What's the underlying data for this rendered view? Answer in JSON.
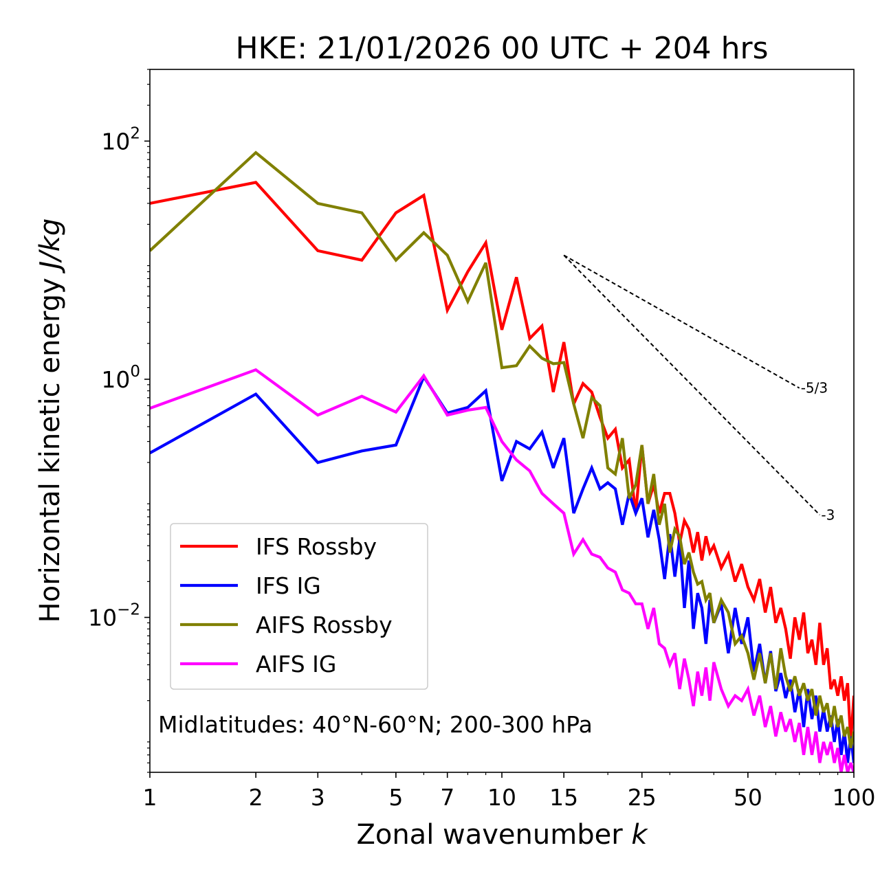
{
  "chart_data": {
    "type": "line",
    "title": "HKE: 21/01/2026 00 UTC + 204 hrs",
    "xlabel": "Zonal wavenumber",
    "xlabel_var": "k",
    "ylabel": "Horizontal kinetic energy",
    "ylabel_unit": "J/kg",
    "xscale": "log",
    "yscale": "log",
    "xlim": [
      1,
      100
    ],
    "ylim": [
      0.0005,
      400
    ],
    "xticks": [
      {
        "value": 1,
        "label": "1"
      },
      {
        "value": 2,
        "label": "2"
      },
      {
        "value": 3,
        "label": "3"
      },
      {
        "value": 5,
        "label": "5"
      },
      {
        "value": 7,
        "label": "7"
      },
      {
        "value": 10,
        "label": "10"
      },
      {
        "value": 15,
        "label": "15"
      },
      {
        "value": 25,
        "label": "25"
      },
      {
        "value": 50,
        "label": "50"
      },
      {
        "value": 100,
        "label": "100"
      }
    ],
    "yticks": [
      {
        "value": 100,
        "base": "10",
        "exp": "2"
      },
      {
        "value": 1,
        "base": "10",
        "exp": "0"
      },
      {
        "value": 0.01,
        "base": "10",
        "exp": "−2"
      }
    ],
    "annotation": "Midlatitudes: 40°N-60°N; 200-300 hPa",
    "legend_position": "lower-left",
    "reference_lines": [
      {
        "label": "-5/3",
        "slope": -1.6667,
        "x0": 15,
        "y0": 11,
        "x1": 70
      },
      {
        "label": "-3",
        "slope": -3,
        "x0": 15,
        "y0": 11,
        "x1": 80
      }
    ],
    "series": [
      {
        "name": "IFS Rossby",
        "color": "#ff0000",
        "x": [
          1,
          2,
          3,
          4,
          5,
          6,
          7,
          8,
          9,
          10,
          11,
          12,
          13,
          14,
          15,
          16,
          17,
          18,
          19,
          20,
          21,
          22,
          23,
          24,
          25,
          26,
          27,
          28,
          29,
          30,
          31,
          32,
          33,
          34,
          35,
          36,
          37,
          38,
          39,
          40,
          42,
          44,
          46,
          48,
          50,
          52,
          54,
          56,
          58,
          60,
          62,
          64,
          66,
          68,
          70,
          72,
          74,
          76,
          78,
          80,
          82,
          84,
          86,
          88,
          90,
          92,
          94,
          96,
          98,
          100
        ],
        "y": [
          30,
          45,
          12,
          10,
          25,
          35,
          3.8,
          8,
          14,
          2.6,
          7.2,
          2.2,
          2.8,
          0.78,
          2.05,
          0.62,
          0.92,
          0.78,
          0.48,
          0.32,
          0.38,
          0.18,
          0.21,
          0.075,
          0.28,
          0.09,
          0.13,
          0.075,
          0.11,
          0.11,
          0.075,
          0.042,
          0.065,
          0.055,
          0.035,
          0.052,
          0.03,
          0.048,
          0.035,
          0.04,
          0.026,
          0.034,
          0.02,
          0.028,
          0.018,
          0.014,
          0.021,
          0.011,
          0.018,
          0.009,
          0.012,
          0.008,
          0.0045,
          0.01,
          0.0065,
          0.011,
          0.005,
          0.0065,
          0.004,
          0.009,
          0.004,
          0.0055,
          0.0025,
          0.003,
          0.0022,
          0.0032,
          0.002,
          0.0028,
          0.0009,
          0.0022
        ]
      },
      {
        "name": "IFS IG",
        "color": "#0000ff",
        "x": [
          1,
          2,
          3,
          4,
          5,
          6,
          7,
          8,
          9,
          10,
          11,
          12,
          13,
          14,
          15,
          16,
          17,
          18,
          19,
          20,
          21,
          22,
          23,
          24,
          25,
          26,
          27,
          28,
          29,
          30,
          31,
          32,
          33,
          34,
          35,
          36,
          37,
          38,
          39,
          40,
          42,
          44,
          46,
          48,
          50,
          52,
          54,
          56,
          58,
          60,
          62,
          64,
          66,
          68,
          70,
          72,
          74,
          76,
          78,
          80,
          82,
          84,
          86,
          88,
          90,
          92,
          94,
          96,
          98,
          100
        ],
        "y": [
          0.24,
          0.75,
          0.2,
          0.25,
          0.28,
          1.05,
          0.52,
          0.58,
          0.8,
          0.14,
          0.3,
          0.26,
          0.36,
          0.18,
          0.32,
          0.075,
          0.12,
          0.18,
          0.12,
          0.135,
          0.12,
          0.06,
          0.11,
          0.075,
          0.1,
          0.047,
          0.08,
          0.045,
          0.021,
          0.05,
          0.022,
          0.045,
          0.012,
          0.03,
          0.008,
          0.016,
          0.012,
          0.006,
          0.014,
          0.009,
          0.013,
          0.005,
          0.012,
          0.006,
          0.01,
          0.0035,
          0.006,
          0.0028,
          0.0052,
          0.0024,
          0.0034,
          0.0021,
          0.003,
          0.0016,
          0.0025,
          0.0012,
          0.0025,
          0.0014,
          0.0022,
          0.0011,
          0.0017,
          0.0011,
          0.0015,
          0.0009,
          0.0014,
          0.0007,
          0.0011,
          0.0006,
          0.001,
          0.0006
        ]
      },
      {
        "name": "AIFS Rossby",
        "color": "#808000",
        "x": [
          1,
          2,
          3,
          4,
          5,
          6,
          7,
          8,
          9,
          10,
          11,
          12,
          13,
          14,
          15,
          16,
          17,
          18,
          19,
          20,
          21,
          22,
          23,
          24,
          25,
          26,
          27,
          28,
          29,
          30,
          31,
          32,
          33,
          34,
          35,
          36,
          37,
          38,
          39,
          40,
          42,
          44,
          46,
          48,
          50,
          52,
          54,
          56,
          58,
          60,
          62,
          64,
          66,
          68,
          70,
          72,
          74,
          76,
          78,
          80,
          82,
          84,
          86,
          88,
          90,
          92,
          94,
          96,
          98,
          100
        ],
        "y": [
          12,
          80,
          30,
          25,
          10,
          17,
          11,
          4.5,
          9.5,
          1.25,
          1.3,
          1.9,
          1.5,
          1.35,
          1.38,
          0.62,
          0.32,
          0.7,
          0.6,
          0.18,
          0.16,
          0.32,
          0.1,
          0.13,
          0.28,
          0.09,
          0.16,
          0.06,
          0.09,
          0.035,
          0.055,
          0.048,
          0.028,
          0.035,
          0.024,
          0.019,
          0.02,
          0.014,
          0.016,
          0.009,
          0.014,
          0.011,
          0.006,
          0.007,
          0.005,
          0.003,
          0.005,
          0.0028,
          0.005,
          0.0025,
          0.0055,
          0.0032,
          0.0024,
          0.0032,
          0.0022,
          0.0028,
          0.002,
          0.0025,
          0.0015,
          0.0022,
          0.0016,
          0.0019,
          0.0012,
          0.0018,
          0.0012,
          0.0015,
          0.001,
          0.0012,
          0.0008,
          0.0011
        ]
      },
      {
        "name": "AIFS IG",
        "color": "#ff00ff",
        "x": [
          1,
          2,
          3,
          4,
          5,
          6,
          7,
          8,
          9,
          10,
          11,
          12,
          13,
          14,
          15,
          16,
          17,
          18,
          19,
          20,
          21,
          22,
          23,
          24,
          25,
          26,
          27,
          28,
          29,
          30,
          31,
          32,
          33,
          34,
          35,
          36,
          37,
          38,
          39,
          40,
          42,
          44,
          46,
          48,
          50,
          52,
          54,
          56,
          58,
          60,
          62,
          64,
          66,
          68,
          70,
          72,
          74,
          76,
          78,
          80,
          82,
          84,
          86,
          88,
          90,
          92,
          94,
          96,
          98,
          100
        ],
        "y": [
          0.57,
          1.2,
          0.5,
          0.72,
          0.53,
          1.07,
          0.5,
          0.55,
          0.58,
          0.3,
          0.21,
          0.17,
          0.11,
          0.09,
          0.075,
          0.034,
          0.045,
          0.034,
          0.032,
          0.026,
          0.024,
          0.017,
          0.016,
          0.013,
          0.013,
          0.008,
          0.012,
          0.006,
          0.0055,
          0.004,
          0.005,
          0.0025,
          0.0045,
          0.003,
          0.0018,
          0.0035,
          0.0022,
          0.0038,
          0.002,
          0.0042,
          0.0025,
          0.0018,
          0.0022,
          0.002,
          0.0025,
          0.0015,
          0.0022,
          0.0012,
          0.0018,
          0.001,
          0.0016,
          0.0011,
          0.0014,
          0.0009,
          0.0013,
          0.0007,
          0.0012,
          0.0007,
          0.0011,
          0.0006,
          0.0009,
          0.0007,
          0.0009,
          0.0006,
          0.0008,
          0.0005,
          0.0007,
          0.0005,
          0.0006,
          0.0005
        ]
      }
    ]
  }
}
